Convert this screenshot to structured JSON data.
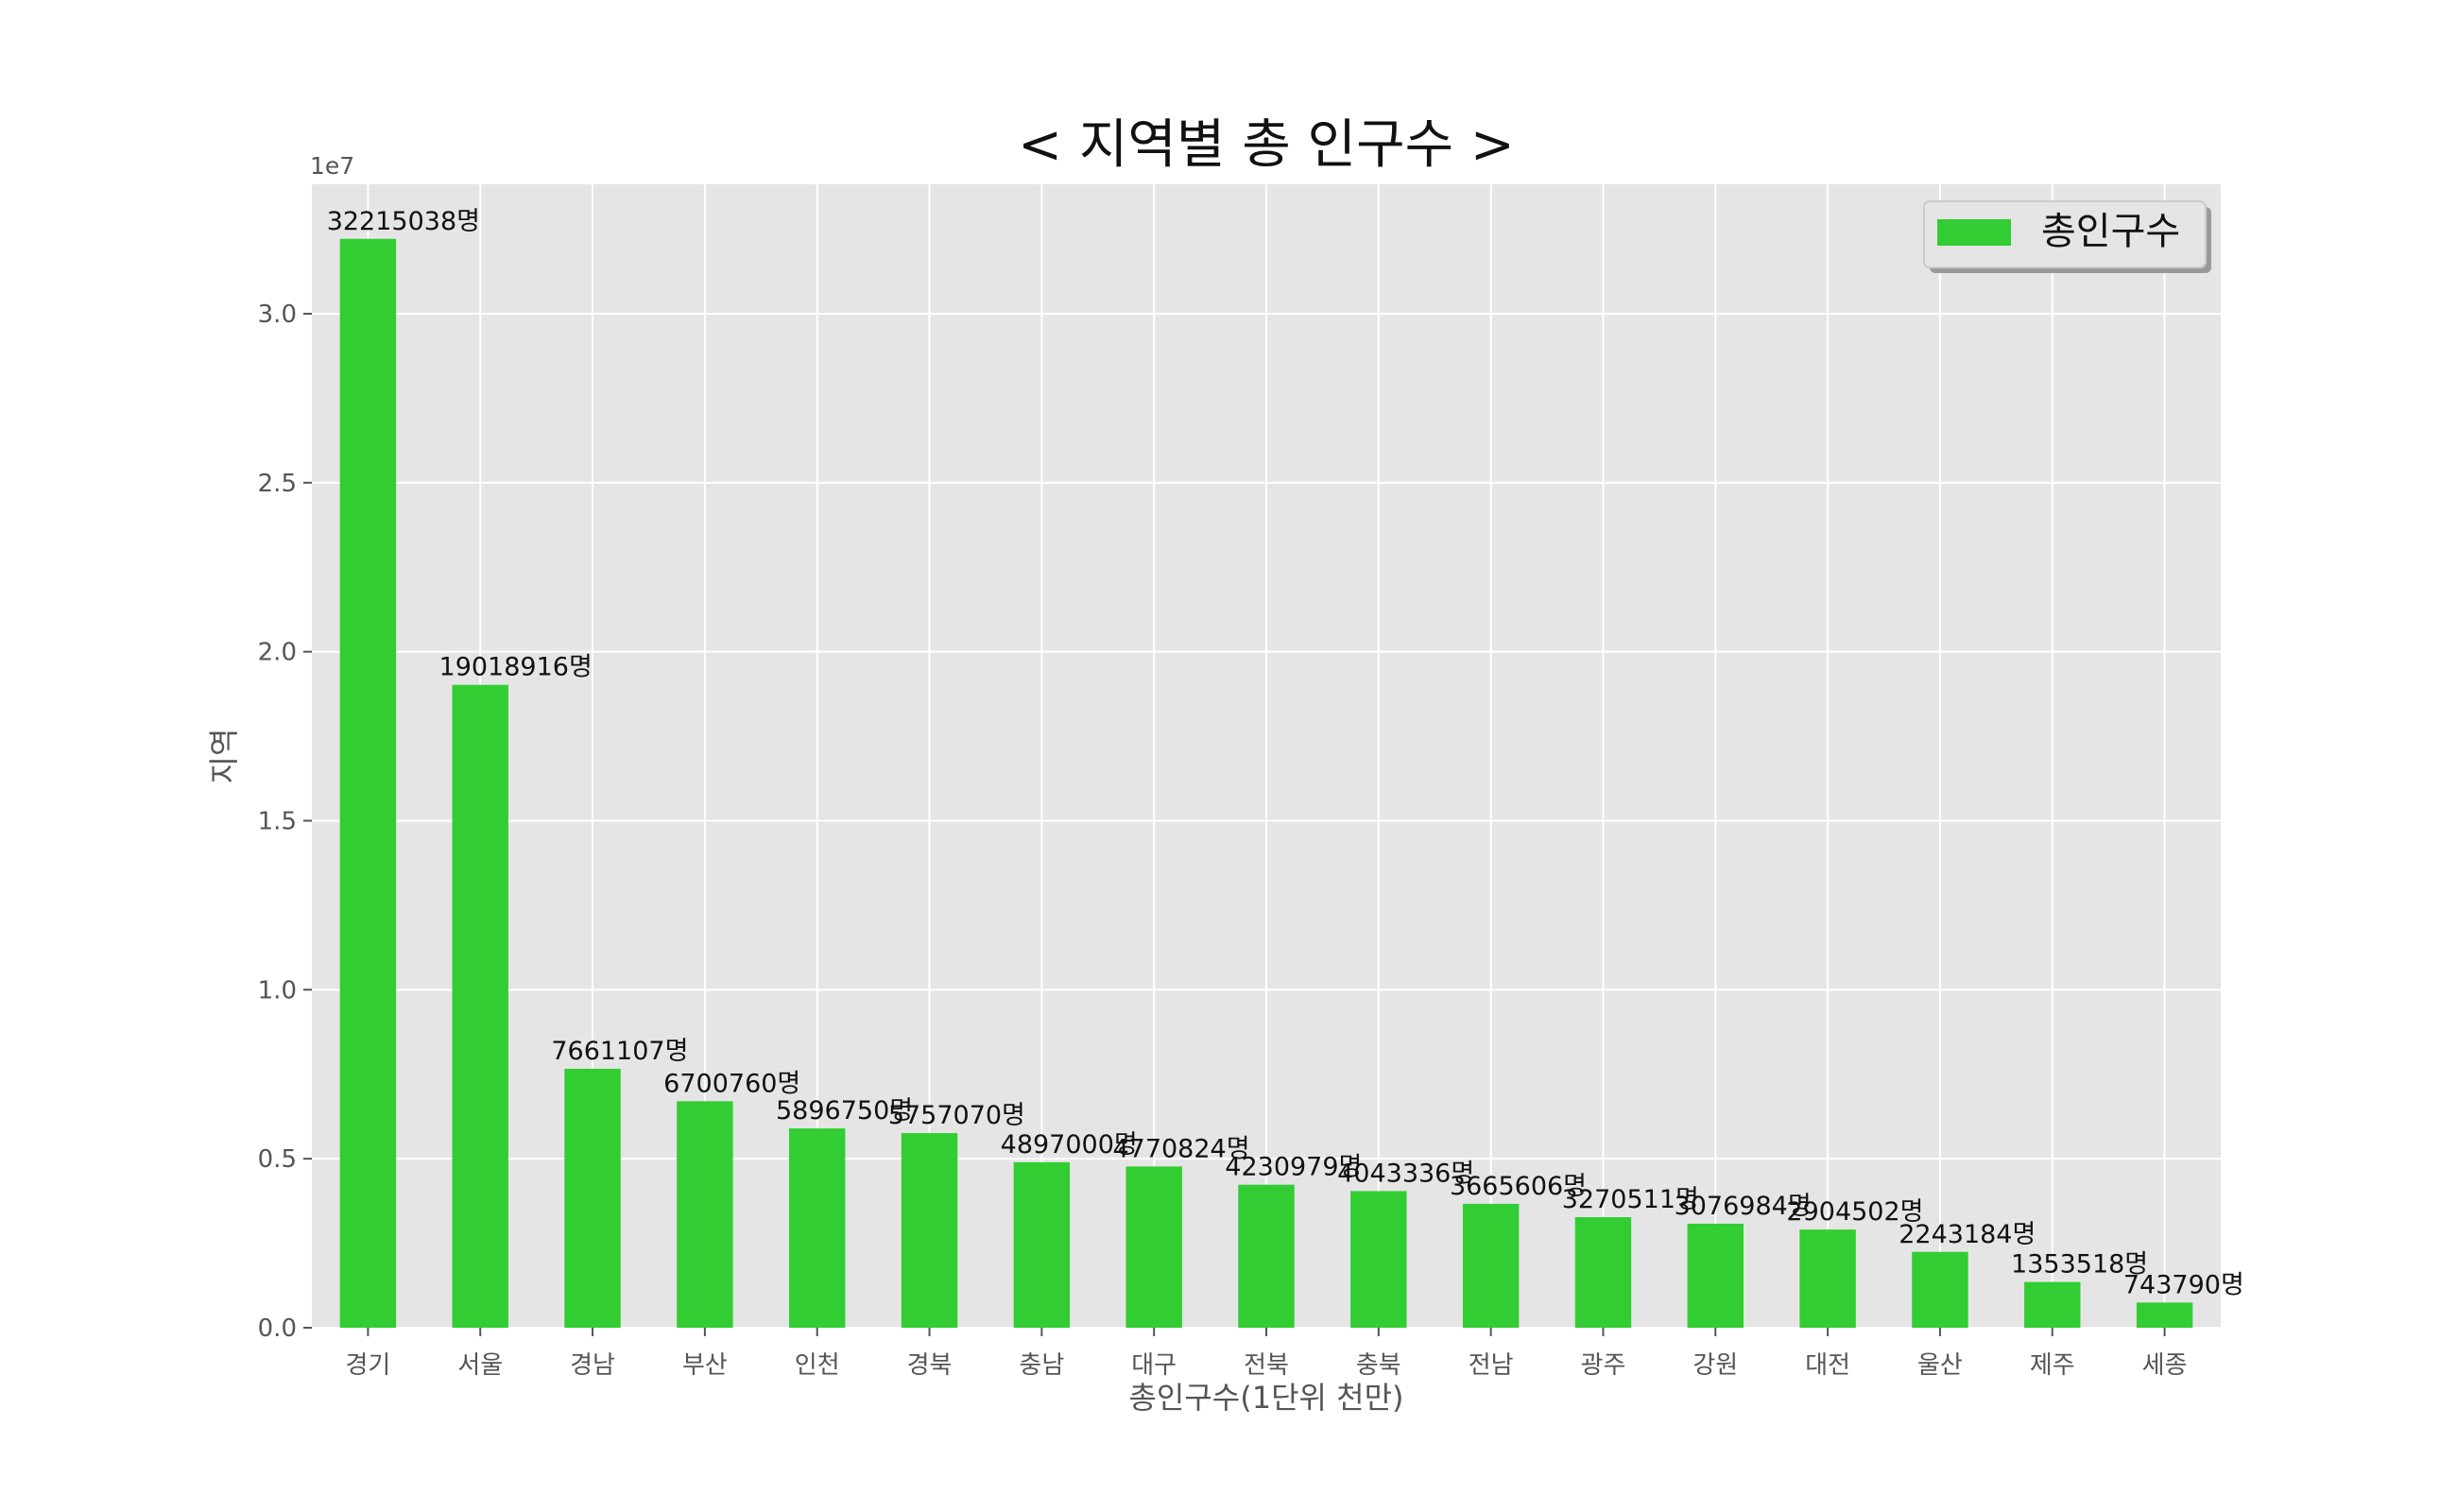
{
  "chart_data": {
    "type": "bar",
    "title": "< 지역별 총 인구수 >",
    "xlabel": "총인구수(1단위 천만)",
    "ylabel": "지역",
    "categories": [
      "경기",
      "서울",
      "경남",
      "부산",
      "인천",
      "경북",
      "충남",
      "대구",
      "전북",
      "충북",
      "전남",
      "광주",
      "강원",
      "대전",
      "울산",
      "제주",
      "세종"
    ],
    "series": [
      {
        "name": "총인구수",
        "color": "#32cd32",
        "values": [
          32215038,
          19018916,
          7661107,
          6700760,
          5896750,
          5757070,
          4897000,
          4770824,
          4230979,
          4043336,
          3665606,
          3270511,
          3076984,
          2904502,
          2243184,
          1353518,
          743790
        ]
      }
    ],
    "data_labels": [
      "32215038명",
      "19018916명",
      "7661107명",
      "6700760명",
      "5896750명",
      "5757070명",
      "4897000명",
      "4770824명",
      "4230979명",
      "4043336명",
      "3665606명",
      "3270511명",
      "3076984명",
      "2904502명",
      "2243184명",
      "1353518명",
      "743790명"
    ],
    "ylim": [
      0,
      33830000
    ],
    "yticks": [
      0,
      5000000,
      10000000,
      15000000,
      20000000,
      25000000,
      30000000
    ],
    "ytick_labels": [
      "0.0",
      "0.5",
      "1.0",
      "1.5",
      "2.0",
      "2.5",
      "3.0"
    ],
    "y_offset_label": "1e7",
    "grid": true,
    "legend_position": "top-right",
    "background_color": "#e5e5e5",
    "grid_color": "#ffffff"
  }
}
